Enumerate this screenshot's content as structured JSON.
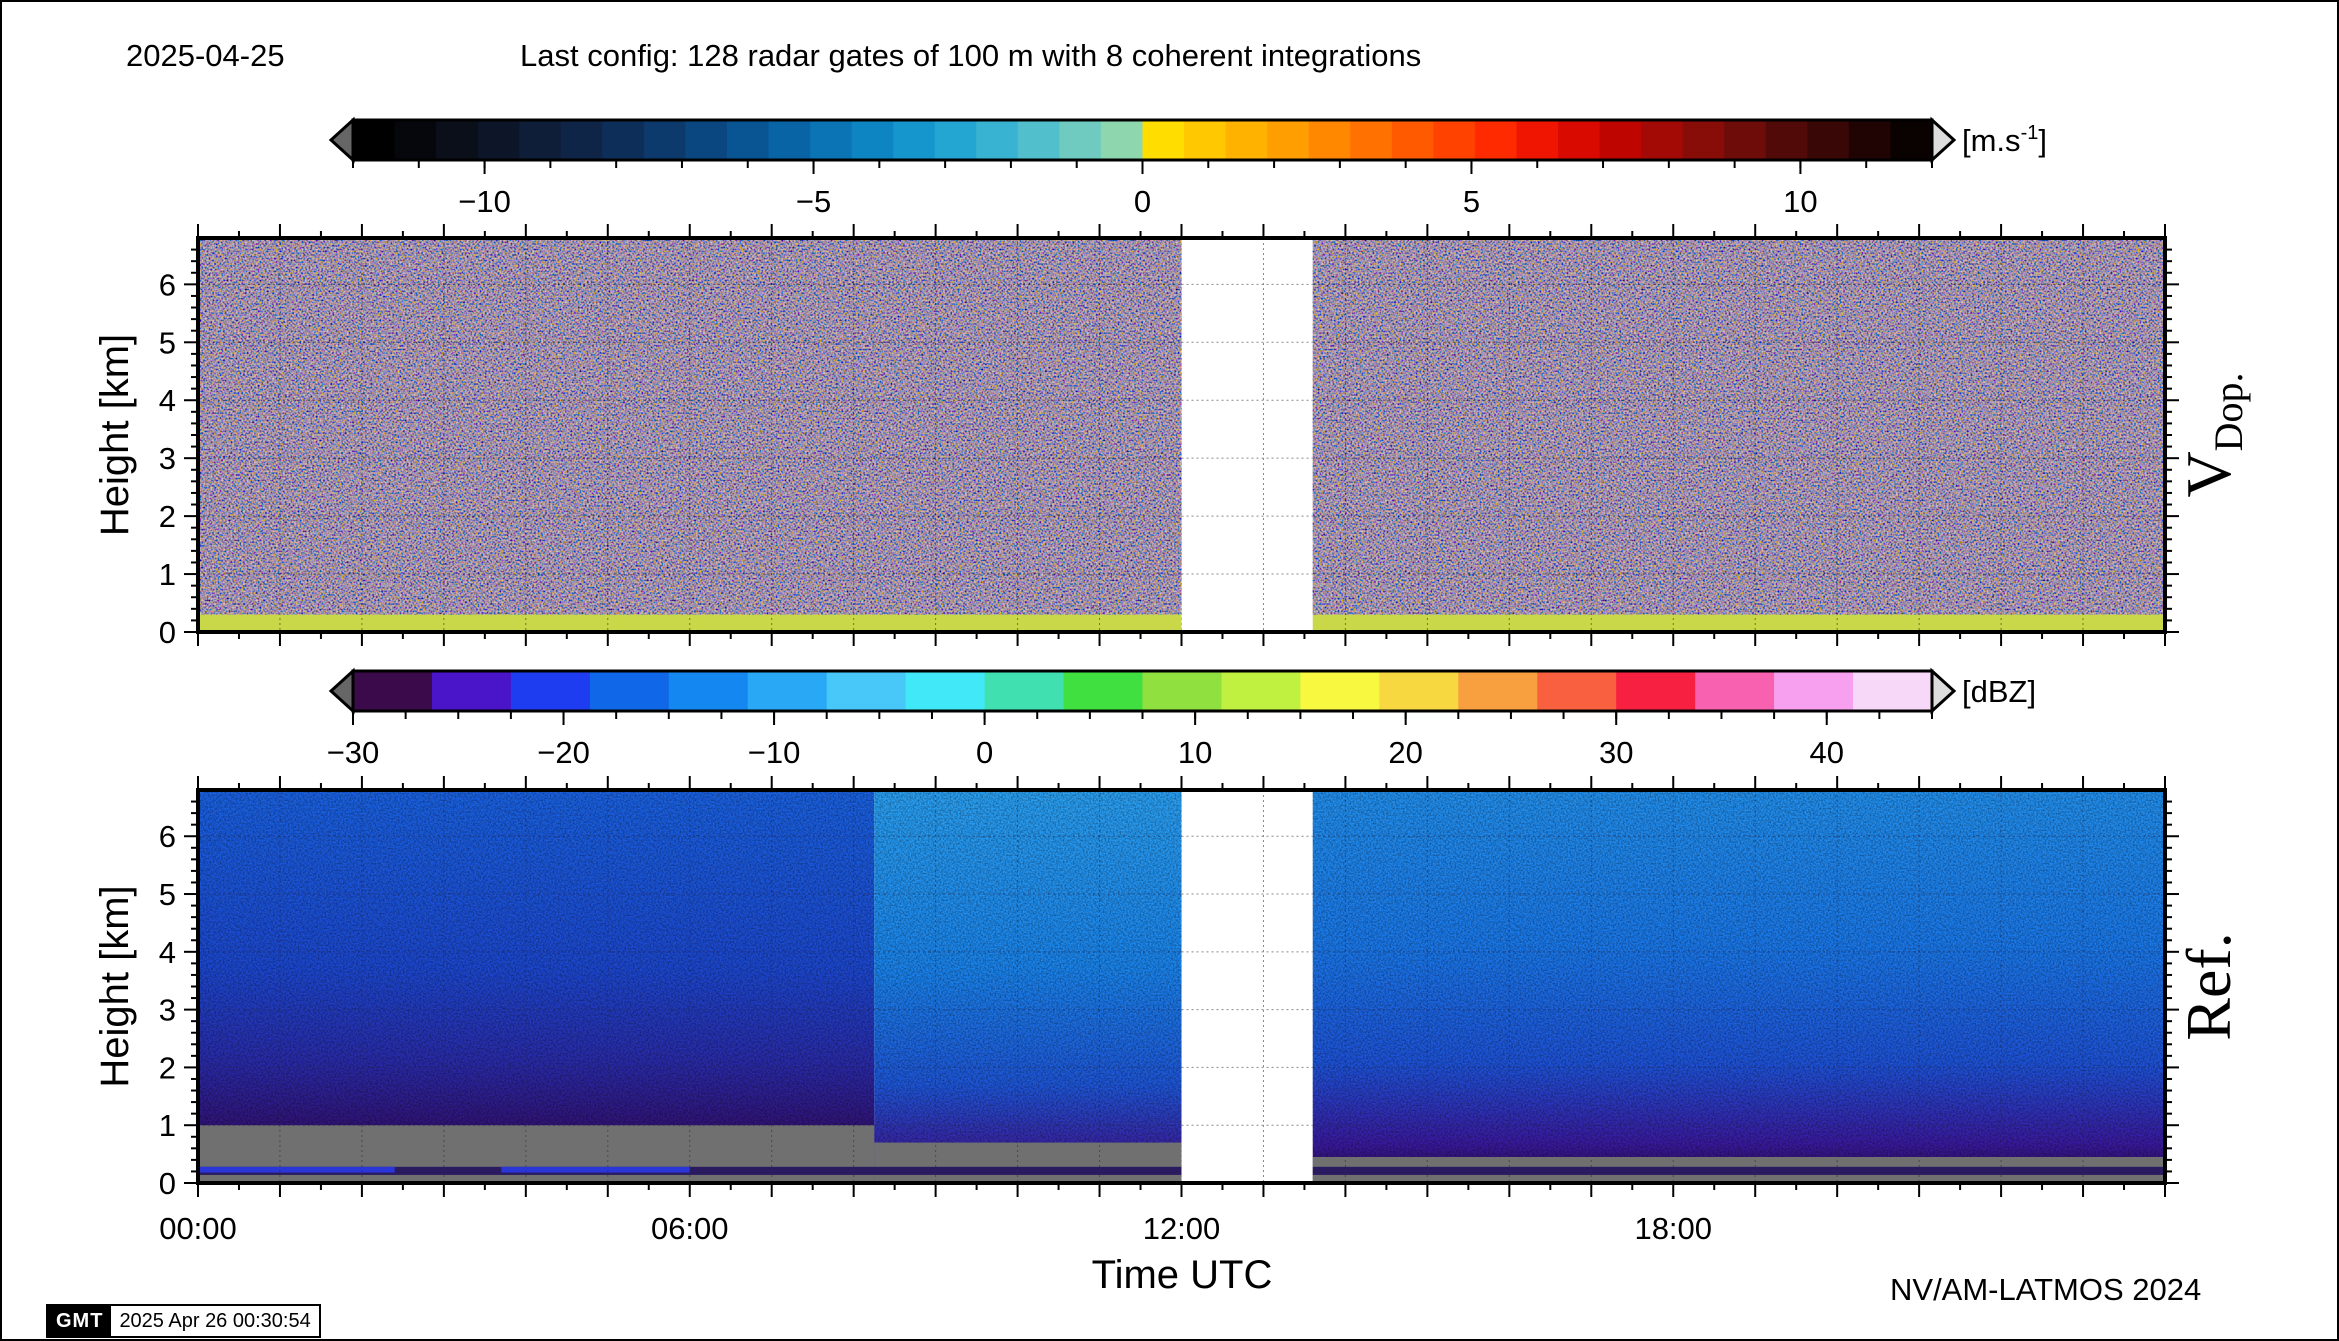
{
  "header": {
    "date": "2025-04-25",
    "config": "Last config: 128 radar gates of 100 m with 8 coherent integrations"
  },
  "footer": {
    "credit": "NV/AM-LATMOS 2024",
    "gmt_logo": "GMT",
    "gmt_timestamp": "2025 Apr 26 00:30:54"
  },
  "chart_data": [
    {
      "type": "heatmap",
      "panel_label": "V",
      "panel_label_subscript": "Dop.",
      "ylabel": "Height [km]",
      "xlabel": "",
      "xlim": [
        0,
        24
      ],
      "ylim": [
        0,
        6.8
      ],
      "yticks": [
        0,
        1,
        2,
        3,
        4,
        5,
        6
      ],
      "data_gap_hours": [
        12.0,
        13.6
      ],
      "grid": true,
      "description_layers": [
        {
          "from_km": 0.0,
          "to_km": 0.3,
          "value_range": [
            -1,
            1
          ]
        },
        {
          "from_km": 0.3,
          "to_km": 6.8,
          "value_range": [
            -12,
            12
          ]
        }
      ],
      "colorbar": {
        "unit": "[m.s",
        "unit_exponent": "-1",
        "unit_close": "]",
        "range": [
          -12,
          12
        ],
        "ticks": [
          -10,
          -5,
          0,
          5,
          10
        ],
        "tick_labels": [
          "−10",
          "−5",
          "0",
          "5",
          "10"
        ],
        "colors": [
          "#000000",
          "#05070c",
          "#0a0f1a",
          "#0c1628",
          "#0e1d38",
          "#0f2548",
          "#0e2e5a",
          "#0c3a6d",
          "#0a4781",
          "#095594",
          "#0964a5",
          "#0a74b4",
          "#0d85c2",
          "#1596cc",
          "#23a6d2",
          "#38b4d2",
          "#52c0cc",
          "#6fcbc0",
          "#8ed6ae",
          "#ffdd00",
          "#ffc800",
          "#ffb300",
          "#ff9e00",
          "#ff8800",
          "#ff7100",
          "#ff5a00",
          "#ff4200",
          "#ff2a00",
          "#f01500",
          "#d90a00",
          "#bf0500",
          "#a30a05",
          "#880c08",
          "#6d0c09",
          "#520a08",
          "#380706",
          "#1f0403",
          "#0a0101"
        ]
      }
    },
    {
      "type": "heatmap",
      "panel_label": "Ref.",
      "ylabel": "Height [km]",
      "xlabel": "Time UTC",
      "xlim": [
        0,
        24
      ],
      "ylim": [
        0,
        6.8
      ],
      "yticks": [
        0,
        1,
        2,
        3,
        4,
        5,
        6
      ],
      "xticks": [
        0,
        6,
        12,
        18
      ],
      "xtick_labels": [
        "00:00",
        "06:00",
        "12:00",
        "18:00"
      ],
      "data_gap_hours": [
        12.0,
        13.6
      ],
      "grid": true,
      "colorbar": {
        "unit": "[dBZ]",
        "range": [
          -30,
          45
        ],
        "ticks": [
          -30,
          -20,
          -10,
          0,
          10,
          20,
          30,
          40
        ],
        "tick_labels": [
          "−30",
          "−20",
          "−10",
          "0",
          "10",
          "20",
          "30",
          "40"
        ],
        "colors": [
          "#3a0a4a",
          "#4a14c8",
          "#1e3cf0",
          "#1068e8",
          "#1488f0",
          "#28a8f5",
          "#48c8f8",
          "#40e8f8",
          "#40e0b0",
          "#40e040",
          "#90e040",
          "#c0f040",
          "#f8f840",
          "#f8d840",
          "#f8a040",
          "#f86040",
          "#f82040",
          "#f860b0",
          "#f8a0f0",
          "#f8d8f8"
        ]
      },
      "sensitivity_floor_change_hour": 8.25
    }
  ]
}
